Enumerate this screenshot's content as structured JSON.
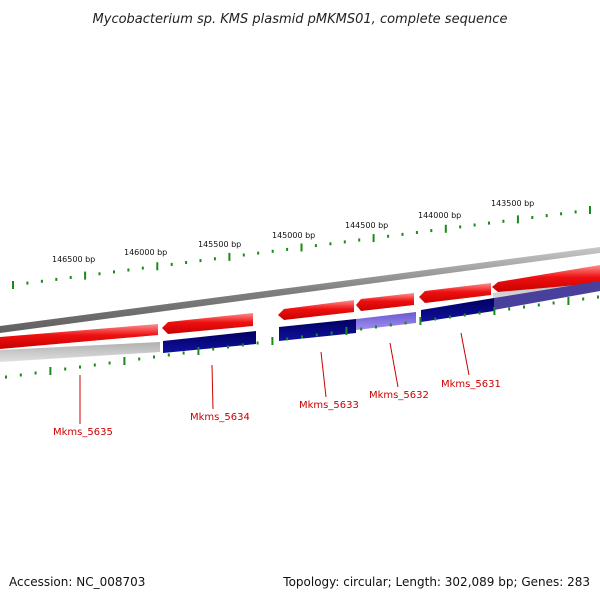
{
  "title": "Mycobacterium sp. KMS plasmid pMKMS01, complete sequence",
  "ruler_labels": [
    "146500 bp",
    "146000 bp",
    "145500 bp",
    "145000 bp",
    "144500 bp",
    "144000 bp",
    "143500 bp"
  ],
  "genes": [
    "Mkms_5635",
    "Mkms_5634",
    "Mkms_5633",
    "Mkms_5632",
    "Mkms_5631"
  ],
  "footer": {
    "accession": "Accession: NC_008703",
    "topology": "Topology: circular; Length: 302,089 bp; Genes: 283"
  },
  "colors": {
    "forward_feature": "#e80000",
    "cds_dark": "#00007a",
    "cds_light": "#8878e0",
    "ruler_tick": "#1a8a1a",
    "label": "#cc0000",
    "backbone": "#808080"
  }
}
